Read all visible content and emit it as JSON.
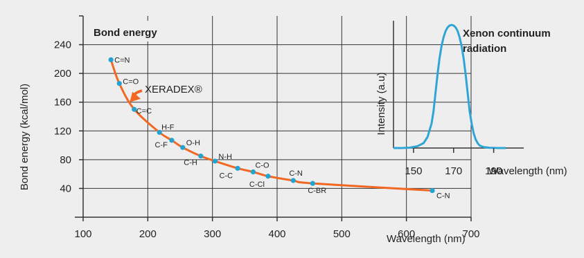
{
  "colors": {
    "curve": "#f26722",
    "point": "#22a3d1",
    "spectrum": "#2fa5d6",
    "grid": "#333333",
    "background": "#eeeeee"
  },
  "chart_data": [
    {
      "type": "scatter",
      "title": "Bond energy",
      "xlabel": "Wavelength (nm)",
      "ylabel": "Bond energy (kcal/mol)",
      "xlim": [
        100,
        700
      ],
      "ylim": [
        0,
        280
      ],
      "x_ticks": [
        "100",
        "200",
        "300",
        "400",
        "500",
        "600",
        "700"
      ],
      "y_ticks": [
        "40",
        "80",
        "120",
        "160",
        "200",
        "240"
      ],
      "grid": true,
      "points": [
        {
          "label": "C=N",
          "x": 143,
          "y": 219
        },
        {
          "label": "C=O",
          "x": 156,
          "y": 186
        },
        {
          "label": "C=C",
          "x": 179,
          "y": 150
        },
        {
          "label": "H-F",
          "x": 218,
          "y": 118
        },
        {
          "label": "C-F",
          "x": 237,
          "y": 107
        },
        {
          "label": "O-H",
          "x": 254,
          "y": 97
        },
        {
          "label": "C-H",
          "x": 282,
          "y": 85
        },
        {
          "label": "N-H",
          "x": 304,
          "y": 78
        },
        {
          "label": "C-C",
          "x": 339,
          "y": 68
        },
        {
          "label": "C-O",
          "x": 363,
          "y": 63
        },
        {
          "label": "C-Cl",
          "x": 386,
          "y": 57
        },
        {
          "label": "C-N",
          "x": 425,
          "y": 51
        },
        {
          "label": "C-BR",
          "x": 455,
          "y": 47
        },
        {
          "label": "C-N",
          "x": 640,
          "y": 37
        }
      ],
      "annotation": {
        "text": "XERADEX®",
        "points_to": [
          172,
          160
        ]
      }
    },
    {
      "type": "line",
      "title": "Xenon continuum radiation",
      "title_lines": [
        "Xenon continuum",
        "radiation"
      ],
      "xlabel": "Wavelength (nm)",
      "ylabel": "Intensity (a.u)",
      "x_ticks": [
        "150",
        "170",
        "190"
      ],
      "xlim": [
        140,
        205
      ],
      "ylim": [
        0,
        1
      ],
      "x": [
        140,
        144,
        148,
        152,
        155,
        157,
        159,
        160,
        161,
        162,
        163,
        164,
        165,
        166,
        167,
        168,
        169,
        170,
        171,
        172,
        173,
        174,
        175,
        176,
        177,
        178,
        179,
        180,
        181,
        182,
        183,
        185,
        188,
        192,
        196
      ],
      "y": [
        0.0,
        0.0,
        0.003,
        0.015,
        0.04,
        0.09,
        0.2,
        0.3,
        0.45,
        0.6,
        0.73,
        0.83,
        0.9,
        0.95,
        0.98,
        0.995,
        1.0,
        0.995,
        0.98,
        0.95,
        0.9,
        0.83,
        0.73,
        0.6,
        0.45,
        0.3,
        0.2,
        0.12,
        0.07,
        0.04,
        0.02,
        0.008,
        0.002,
        0.0,
        0.0
      ]
    }
  ]
}
